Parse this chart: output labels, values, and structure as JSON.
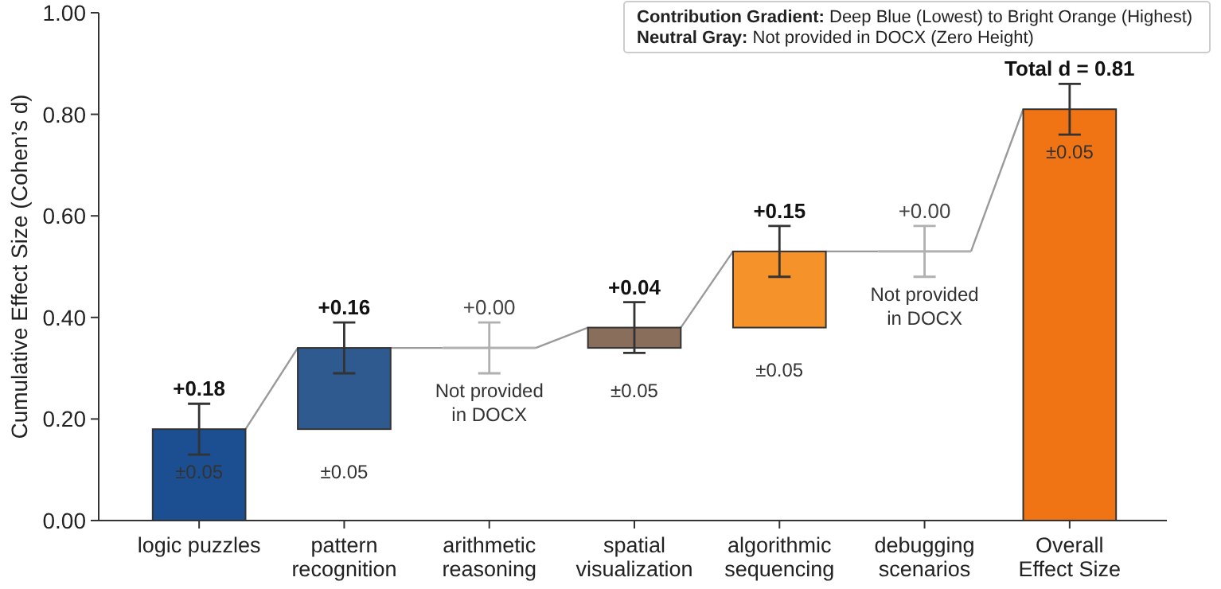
{
  "chart_data": {
    "type": "bar",
    "ylabel": "Cumulative Effect Size (Cohen’s d)",
    "categories": [
      "logic puzzles",
      "pattern recognition",
      "arithmetic reasoning",
      "spatial visualization",
      "algorithmic sequencing",
      "debugging scenarios",
      "Overall Effect Size"
    ],
    "values": [
      0.18,
      0.16,
      0,
      0.04,
      0.15,
      0,
      0.81
    ],
    "base": [
      0,
      0.18,
      0.34,
      0.34,
      0.38,
      0.53,
      0
    ],
    "errors": [
      0.05,
      0.05,
      0.05,
      0.05,
      0.05,
      0.05,
      0.05
    ],
    "colors": [
      "#1b4f91",
      "#2f5a8f",
      "#b0b0b0",
      "#8a6e5c",
      "#f5922a",
      "#b0b0b0",
      "#f07314"
    ],
    "value_labels": [
      "+0.18",
      "+0.16",
      "+0.00",
      "+0.04",
      "+0.15",
      "+0.00",
      "Total d = 0.81"
    ],
    "ylim": [
      0,
      1
    ],
    "yticks": [
      {
        "value": 0,
        "label": "0.00"
      },
      {
        "value": 0.2,
        "label": "0.20"
      },
      {
        "value": 0.4,
        "label": "0.40"
      },
      {
        "value": 0.6,
        "label": "0.60"
      },
      {
        "value": 0.8,
        "label": "0.80"
      },
      {
        "value": 1,
        "label": "1.00"
      }
    ],
    "annotations": [
      "Contribution Gradient: Deep Blue (Lowest) to Bright Orange (Highest)",
      "Neutral Gray: Not provided in DOCX (Zero Height)",
      {
        "text": "±0.05",
        "x": "logic puzzles",
        "y": 0.18
      },
      {
        "text": "±0.05",
        "x": "pattern recognition",
        "y": 0.18
      },
      {
        "text": "Not provided in DOCX",
        "x": "arithmetic reasoning",
        "y": 0.34
      },
      {
        "text": "±0.05",
        "x": "spatial visualization",
        "y": 0.34
      },
      {
        "text": "±0.05",
        "x": "algorithmic sequencing",
        "y": 0.38
      },
      {
        "text": "Not provided in DOCX",
        "x": "debugging scenarios",
        "y": 0.53
      },
      {
        "text": "±0.05",
        "x": "Overall Effect Size",
        "y": 0.81
      }
    ]
  }
}
